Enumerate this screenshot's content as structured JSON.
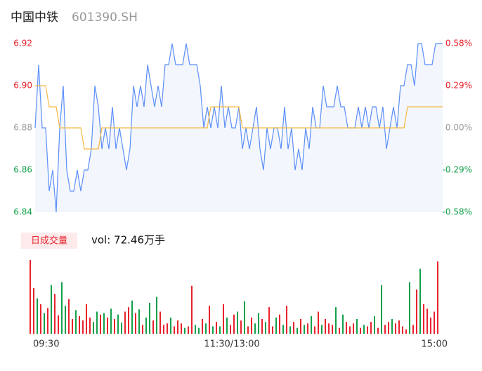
{
  "header": {
    "title": "中国中铁",
    "code": "601390.SH"
  },
  "chart_data": [
    {
      "type": "line",
      "xlim": [
        0,
        116
      ],
      "ylim": [
        6.84,
        6.92
      ],
      "yticks": [
        6.84,
        6.86,
        {
          "value": 6.88,
          "label": "6.88"
        },
        {
          "value": 6.9,
          "label": "6.90"
        },
        6.92
      ],
      "y2lim": [
        -0.58,
        0.58
      ],
      "y2ticks": [
        {
          "value": -0.58,
          "label": "-0.58%"
        },
        {
          "value": -0.29,
          "label": "-0.29%"
        },
        {
          "value": 0,
          "label": "0.00%"
        },
        {
          "value": 0.29,
          "label": "0.29%"
        },
        {
          "value": 0.58,
          "label": "0.58%"
        }
      ],
      "up_color": "#e8232d",
      "down_color": "#12a04a",
      "flat_color": "#999999",
      "area_color": "#f3f6fc",
      "series": [
        {
          "color": "#5b8ff9",
          "values": [
            6.88,
            6.91,
            6.88,
            6.88,
            6.85,
            6.86,
            6.84,
            6.88,
            6.9,
            6.86,
            6.85,
            6.85,
            6.86,
            6.85,
            6.86,
            6.86,
            6.87,
            6.9,
            6.89,
            6.87,
            6.88,
            6.87,
            6.89,
            6.87,
            6.88,
            6.87,
            6.86,
            6.87,
            6.9,
            6.89,
            6.9,
            6.89,
            6.91,
            6.9,
            6.89,
            6.9,
            6.89,
            6.91,
            6.91,
            6.92,
            6.91,
            6.91,
            6.91,
            6.92,
            6.91,
            6.91,
            6.91,
            6.9,
            6.88,
            6.89,
            6.88,
            6.89,
            6.88,
            6.9,
            6.88,
            6.89,
            6.88,
            6.88,
            6.89,
            6.87,
            6.88,
            6.87,
            6.88,
            6.89,
            6.87,
            6.86,
            6.88,
            6.87,
            6.88,
            6.88,
            6.87,
            6.89,
            6.87,
            6.88,
            6.86,
            6.87,
            6.86,
            6.88,
            6.87,
            6.89,
            6.88,
            6.88,
            6.9,
            6.89,
            6.89,
            6.89,
            6.9,
            6.89,
            6.89,
            6.88,
            6.88,
            6.88,
            6.89,
            6.88,
            6.89,
            6.88,
            6.89,
            6.89,
            6.88,
            6.89,
            6.87,
            6.88,
            6.89,
            6.88,
            6.9,
            6.9,
            6.91,
            6.91,
            6.9,
            6.92,
            6.92,
            6.91,
            6.91,
            6.91,
            6.92,
            6.92,
            6.92
          ]
        },
        {
          "color": "#f5b942",
          "values": [
            6.9,
            6.9,
            6.9,
            6.9,
            6.89,
            6.89,
            6.89,
            6.88,
            6.88,
            6.88,
            6.88,
            6.88,
            6.88,
            6.88,
            6.87,
            6.87,
            6.87,
            6.87,
            6.87,
            6.88,
            6.88,
            6.88,
            6.88,
            6.88,
            6.88,
            6.88,
            6.88,
            6.88,
            6.88,
            6.88,
            6.88,
            6.88,
            6.88,
            6.88,
            6.88,
            6.88,
            6.88,
            6.88,
            6.88,
            6.88,
            6.88,
            6.88,
            6.88,
            6.88,
            6.88,
            6.88,
            6.88,
            6.88,
            6.88,
            6.88,
            6.89,
            6.89,
            6.89,
            6.89,
            6.89,
            6.89,
            6.89,
            6.89,
            6.89,
            6.88,
            6.88,
            6.88,
            6.88,
            6.88,
            6.88,
            6.88,
            6.88,
            6.88,
            6.88,
            6.88,
            6.88,
            6.88,
            6.88,
            6.88,
            6.88,
            6.88,
            6.88,
            6.88,
            6.88,
            6.88,
            6.88,
            6.88,
            6.88,
            6.88,
            6.88,
            6.88,
            6.88,
            6.88,
            6.88,
            6.88,
            6.88,
            6.88,
            6.88,
            6.88,
            6.88,
            6.88,
            6.88,
            6.88,
            6.88,
            6.88,
            6.88,
            6.88,
            6.88,
            6.88,
            6.88,
            6.88,
            6.89,
            6.89,
            6.89,
            6.89,
            6.89,
            6.89,
            6.89,
            6.89,
            6.89,
            6.89,
            6.89
          ]
        }
      ]
    },
    {
      "type": "bar",
      "title": "日成交量",
      "annotation": "vol: 72.46万手",
      "xlim": [
        0,
        116
      ],
      "xticks": [
        {
          "value": 0,
          "label": "09:30"
        },
        {
          "value": 58,
          "label": "11:30/13:00"
        },
        {
          "value": 116,
          "label": "15:00"
        }
      ],
      "ylim": [
        0,
        100
      ],
      "values": [
        100,
        62,
        48,
        40,
        28,
        35,
        66,
        54,
        25,
        70,
        38,
        47,
        20,
        32,
        24,
        18,
        40,
        22,
        16,
        30,
        26,
        28,
        22,
        34,
        20,
        26,
        15,
        30,
        36,
        45,
        28,
        33,
        12,
        22,
        42,
        18,
        50,
        30,
        12,
        14,
        22,
        10,
        18,
        14,
        8,
        10,
        65,
        12,
        8,
        20,
        14,
        38,
        10,
        16,
        10,
        40,
        22,
        12,
        26,
        30,
        18,
        44,
        10,
        22,
        14,
        28,
        20,
        16,
        36,
        10,
        22,
        26,
        12,
        38,
        10,
        16,
        8,
        20,
        12,
        14,
        24,
        10,
        30,
        12,
        20,
        14,
        12,
        36,
        8,
        26,
        16,
        10,
        14,
        20,
        8,
        12,
        10,
        16,
        24,
        8,
        66,
        12,
        16,
        20,
        14,
        18,
        10,
        6,
        70,
        12,
        60,
        88,
        40,
        34,
        22,
        30,
        98
      ]
    }
  ]
}
